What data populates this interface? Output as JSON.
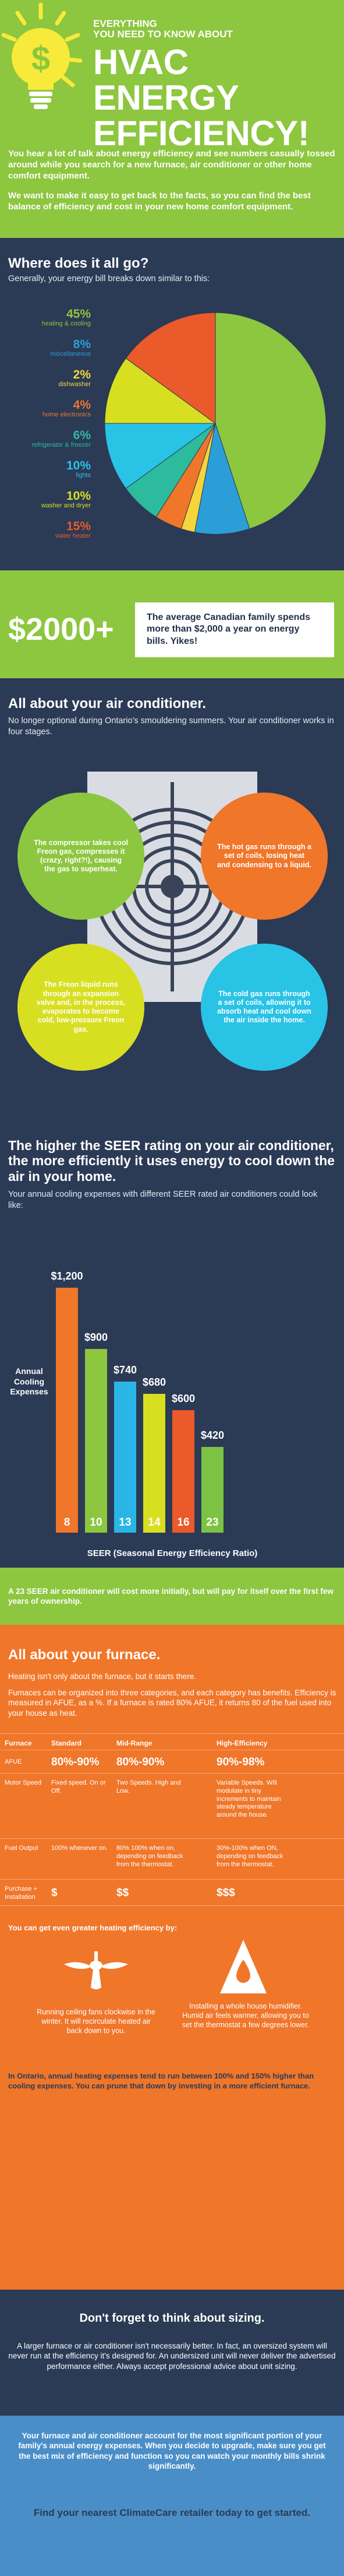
{
  "header": {
    "kicker_line1": "EVERYTHING",
    "kicker_line2": "YOU NEED TO KNOW ABOUT",
    "title_line1": "HVAC",
    "title_line2": "ENERGY",
    "title_line3": "EFFICIENCY!",
    "intro_p1": "You hear a lot of talk about energy efficiency and see numbers casually tossed around while you search for a new furnace, air conditioner or other home comfort equipment.",
    "intro_p2": "We want to make it easy to get back to the facts, so you can find the best balance of efficiency and cost in your new home comfort equipment."
  },
  "breakdown": {
    "heading": "Where does it all go?",
    "subheading": "Generally, your energy bill breaks down similar to this:"
  },
  "chart_data": {
    "type": "pie",
    "title": "Where does it all go?",
    "categories": [
      "heating & cooling",
      "miscellaneous",
      "dishwasher",
      "home electronics",
      "refrigerator & freezer",
      "lights",
      "washer and dryer",
      "water heater"
    ],
    "values": [
      45,
      8,
      2,
      4,
      6,
      10,
      10,
      15
    ],
    "labels": [
      "45%",
      "8%",
      "2%",
      "4%",
      "6%",
      "10%",
      "10%",
      "15%"
    ],
    "colors": [
      "#8dc63f",
      "#2b9ed8",
      "#f5d43c",
      "#f0762a",
      "#2dbb9e",
      "#29c3e6",
      "#d8df20",
      "#ea5a2a"
    ],
    "legend": "left"
  },
  "cost": {
    "amount": "$2000+",
    "note": "The average Canadian family spends more than $2,000 a year on energy bills. Yikes!"
  },
  "ac": {
    "heading": "All about your air conditioner.",
    "subheading": "No longer optional during Ontario's smouldering summers. Your air conditioner works in four stages.",
    "stage1": "The compressor takes cool Freon gas, compresses it (crazy, right?!), causing the gas to superheat.",
    "stage2": "The hot gas runs through a set of coils, losing heat and condensing to a liquid.",
    "stage3": "The Freon liquid runs through an expansion valve and, in the process, evaporates to become cold, low-pressure Freon gas.",
    "stage4": "The cold gas runs through a set of coils, allowing it to absorb heat and cool down the air inside the home."
  },
  "seer": {
    "heading": "The higher the SEER rating on your air conditioner, the more efficiently it uses energy to cool down the air in your home.",
    "subheading": "Your annual cooling expenses with different SEER rated air conditioners could look like:",
    "ylabel": "Annual Cooling Expenses",
    "xlabel": "SEER (Seasonal Energy Efficiency Ratio)",
    "note": "A 23 SEER air conditioner will cost more initially, but will pay for itself over the first few years of ownership."
  },
  "seer_chart": {
    "type": "bar",
    "categories": [
      "8",
      "10",
      "13",
      "14",
      "16",
      "23"
    ],
    "values": [
      1200,
      900,
      740,
      680,
      600,
      420
    ],
    "value_labels": [
      "$1,200",
      "$900",
      "$740",
      "$680",
      "$600",
      "$420"
    ],
    "colors": [
      "#f0762a",
      "#8dc63f",
      "#29b6e6",
      "#d8df20",
      "#ea5a2a",
      "#7cc243"
    ]
  },
  "furnace": {
    "heading": "All about your furnace.",
    "p1": "Heating isn't only about the furnace, but it starts there.",
    "p2": "Furnaces can be organized into three categories, and each category has benefits. Efficiency is measured in AFUE, as a %. If a furnace is rated 80% AFUE, it returns 80 of the fuel used into your house as heat.",
    "table": {
      "headers": [
        "Furnace",
        "Standard",
        "Mid-Range",
        "High-Efficiency"
      ],
      "rows": [
        [
          "AFUE",
          "80%-90%",
          "80%-90%",
          "90%-98%"
        ],
        [
          "Motor Speed",
          "Fixed speed. On or Off.",
          "Two Speeds. High and Low.",
          "Variable Speeds. Will modulate in tiny increments to maintain steady temperature around the house."
        ],
        [
          "Fuel Output",
          "100% whenever on.",
          "80% 100% when on, depending on feedback from the thermostat.",
          "30%-100% when ON, depending on feedback from the thermostat."
        ],
        [
          "Purchase + Installation",
          "$",
          "$$",
          "$$$"
        ]
      ]
    },
    "tips_heading": "You can get even greater heating efficiency by:",
    "tip1": "Running ceiling fans clockwise in the winter. It will recirculate heated air back down to you.",
    "tip2": "Installing a whole house humidifier. Humid air feels warmer, allowing you to set the thermostat a few degrees lower.",
    "closing": "In Ontario, annual heating expenses tend to run between 100% and 150% higher than cooling expenses. You can prune that down by investing in a more efficient furnace."
  },
  "sizing": {
    "heading": "Don't forget to think about sizing.",
    "p1": "A larger furnace or air conditioner isn't necessarily better. In fact, an oversized system will never run at the efficiency it's designed for. An undersized unit will never deliver the advertised performance either. Always accept professional advice about unit sizing.",
    "p2": "Your furnace and air conditioner account for the most significant portion of your family's annual energy expenses. When you decide to upgrade, make sure you get the best mix of efficiency and function so you can watch your monthly bills shrink significantly.",
    "cta": "Find your nearest ClimateCare retailer today to get started."
  }
}
